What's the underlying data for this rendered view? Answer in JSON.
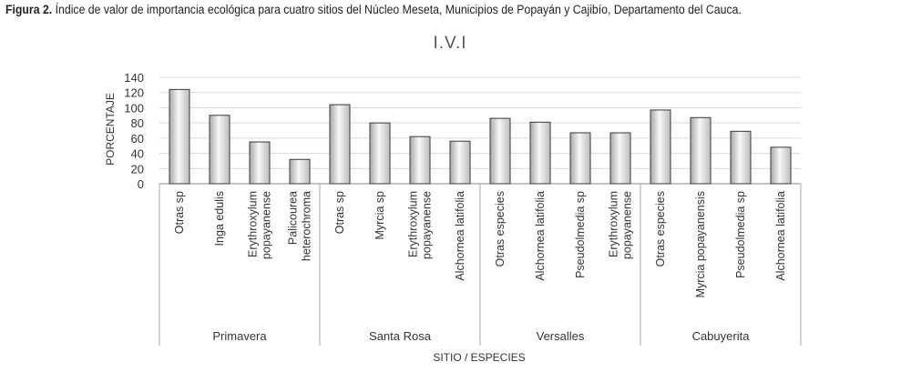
{
  "caption": {
    "label": "Figura 2.",
    "text": " Índice de valor de importancia ecológica para cuatro sitios del Núcleo Meseta, Municipios de Popayán y Cajibío, Departamento del Cauca."
  },
  "chart_data": {
    "type": "bar",
    "title": "I.V.I",
    "xlabel": "SITIO / ESPECIES",
    "ylabel": "PORCENTAJE",
    "ylim": [
      0,
      140
    ],
    "yticks": [
      0,
      20,
      40,
      60,
      80,
      100,
      120,
      140
    ],
    "grid": true,
    "groups": [
      {
        "name": "Primavera",
        "categories": [
          [
            "Otras sp"
          ],
          [
            "Inga edulis"
          ],
          [
            "Erythroxylum",
            "popayanense"
          ],
          [
            "Palicourea",
            "heterochroma"
          ]
        ],
        "values": [
          124,
          90,
          55,
          32
        ]
      },
      {
        "name": "Santa Rosa",
        "categories": [
          [
            "Otras sp"
          ],
          [
            "Myrcia sp"
          ],
          [
            "Erythroxylum",
            "popayanense"
          ],
          [
            "Alchornea latifolia"
          ]
        ],
        "values": [
          104,
          80,
          62,
          56
        ]
      },
      {
        "name": "Versalles",
        "categories": [
          [
            "Otras especies"
          ],
          [
            "Alchornea latifolia"
          ],
          [
            "Pseudolmedia sp"
          ],
          [
            "Erythroxylum",
            "popayanense"
          ]
        ],
        "values": [
          86,
          81,
          67,
          67
        ]
      },
      {
        "name": "Cabuyerita",
        "categories": [
          [
            "Otras especies"
          ],
          [
            "Myrcia popayanensis"
          ],
          [
            "Pseudolmedia sp"
          ],
          [
            "Alchornea latifolia"
          ]
        ],
        "values": [
          97,
          87,
          69,
          48
        ]
      }
    ]
  }
}
